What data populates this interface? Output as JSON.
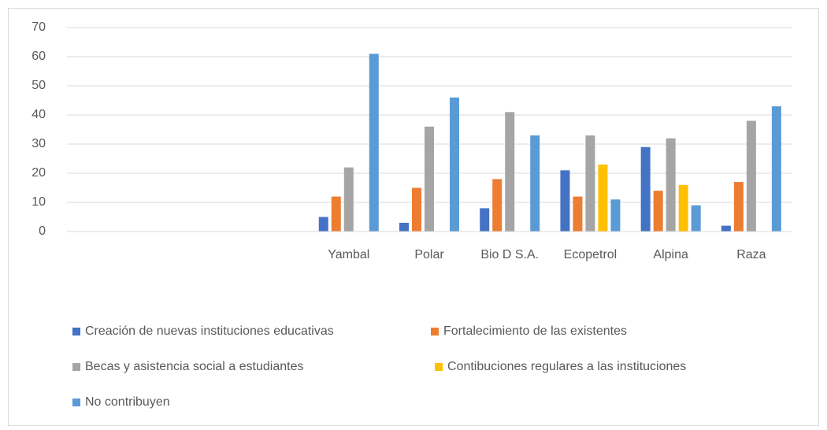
{
  "chart_data": {
    "type": "bar",
    "categories": [
      null,
      null,
      null,
      "Yambal",
      "Polar",
      "Bio D S.A.",
      "Ecopetrol",
      "Alpina",
      "Raza"
    ],
    "series": [
      {
        "name": "Creación de nuevas instituciones educativas",
        "color": "#4472c4",
        "values": [
          null,
          null,
          null,
          5,
          3,
          8,
          21,
          29,
          2
        ]
      },
      {
        "name": "Fortalecimiento de las existentes",
        "color": "#ed7d31",
        "values": [
          null,
          null,
          null,
          12,
          15,
          18,
          12,
          14,
          17
        ]
      },
      {
        "name": "Becas y asistencia social a estudiantes",
        "color": "#a5a5a5",
        "values": [
          null,
          null,
          null,
          22,
          36,
          41,
          33,
          32,
          38
        ]
      },
      {
        "name": "Contibuciones regulares a las instituciones",
        "color": "#ffc000",
        "values": [
          null,
          null,
          null,
          0,
          0,
          0,
          23,
          16,
          0
        ]
      },
      {
        "name": "No contribuyen",
        "color": "#5b9bd5",
        "values": [
          null,
          null,
          null,
          61,
          46,
          33,
          11,
          9,
          43
        ]
      }
    ],
    "ylim": [
      0,
      70
    ],
    "yticks": [
      0,
      10,
      20,
      30,
      40,
      50,
      60,
      70
    ],
    "grid": true,
    "legend": "bottom"
  }
}
